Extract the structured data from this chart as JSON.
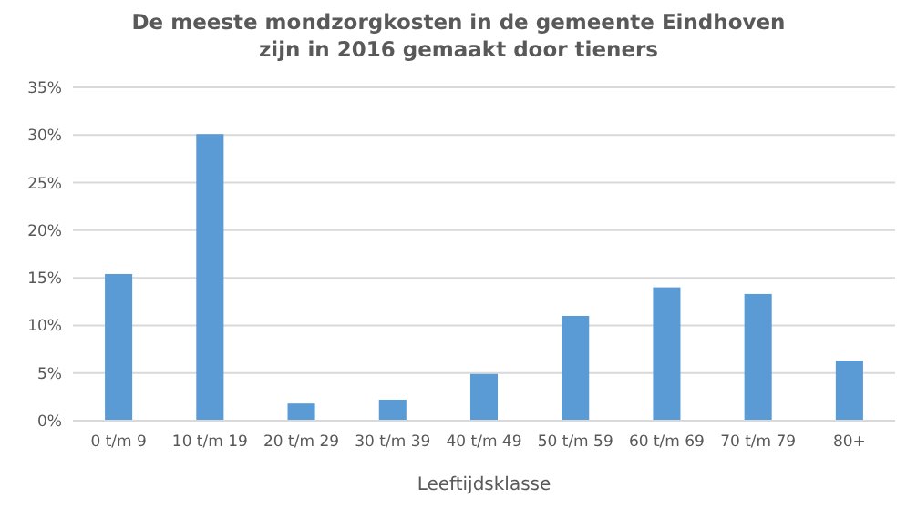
{
  "chart_data": {
    "type": "bar",
    "title": "De meeste mondzorgkosten in de gemeente Eindhoven\nzijn in 2016 gemaakt door tieners",
    "xlabel": "Leeftijdsklasse",
    "categories": [
      "0 t/m 9",
      "10 t/m 19",
      "20 t/m 29",
      "30 t/m 39",
      "40 t/m 49",
      "50 t/m 59",
      "60 t/m 69",
      "70 t/m 79",
      "80+"
    ],
    "values": [
      15.4,
      30.1,
      1.8,
      2.2,
      4.9,
      11.0,
      14.0,
      13.3,
      6.3
    ],
    "color": "#5b9bd5",
    "ylim": [
      0,
      35
    ],
    "yticks": [
      {
        "value": 0,
        "label": "0%"
      },
      {
        "value": 5,
        "label": "5%"
      },
      {
        "value": 10,
        "label": "10%"
      },
      {
        "value": 15,
        "label": "15%"
      },
      {
        "value": 20,
        "label": "20%"
      },
      {
        "value": 25,
        "label": "25%"
      },
      {
        "value": 30,
        "label": "30%"
      },
      {
        "value": 35,
        "label": "35%"
      }
    ],
    "grid": "y"
  }
}
